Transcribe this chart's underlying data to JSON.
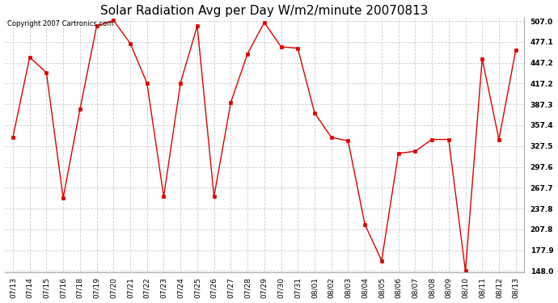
{
  "title": "Solar Radiation Avg per Day W/m2/minute 20070813",
  "copyright_text": "Copyright 2007 Cartronics.com",
  "dates": [
    "07/13",
    "07/14",
    "07/15",
    "07/16",
    "07/18",
    "07/19",
    "07/20",
    "07/21",
    "07/22",
    "07/23",
    "07/24",
    "07/25",
    "07/26",
    "07/27",
    "07/28",
    "07/29",
    "07/30",
    "07/31",
    "08/01",
    "08/02",
    "08/03",
    "08/04",
    "08/05",
    "08/06",
    "08/07",
    "08/08",
    "08/09",
    "08/10",
    "08/11",
    "08/12",
    "08/13"
  ],
  "values": [
    340.0,
    455.0,
    433.0,
    253.0,
    380.0,
    500.0,
    508.0,
    475.0,
    418.0,
    255.0,
    418.0,
    500.0,
    255.0,
    390.0,
    460.0,
    505.0,
    470.0,
    468.0,
    375.0,
    340.0,
    335.0,
    215.0,
    163.0,
    317.0,
    320.0,
    337.0,
    337.0,
    148.0,
    453.0,
    337.0,
    465.0
  ],
  "line_color": "#dd0000",
  "marker": "s",
  "marker_size": 2.5,
  "bg_color": "#ffffff",
  "grid_color": "#cccccc",
  "grid_style": "--",
  "ylim_min": 148.0,
  "ylim_max": 507.0,
  "yticks": [
    507.0,
    477.1,
    447.2,
    417.2,
    387.3,
    357.4,
    327.5,
    297.6,
    267.7,
    237.8,
    207.8,
    177.9,
    148.0
  ],
  "title_fontsize": 11,
  "tick_fontsize": 6.5,
  "copyright_fontsize": 6
}
